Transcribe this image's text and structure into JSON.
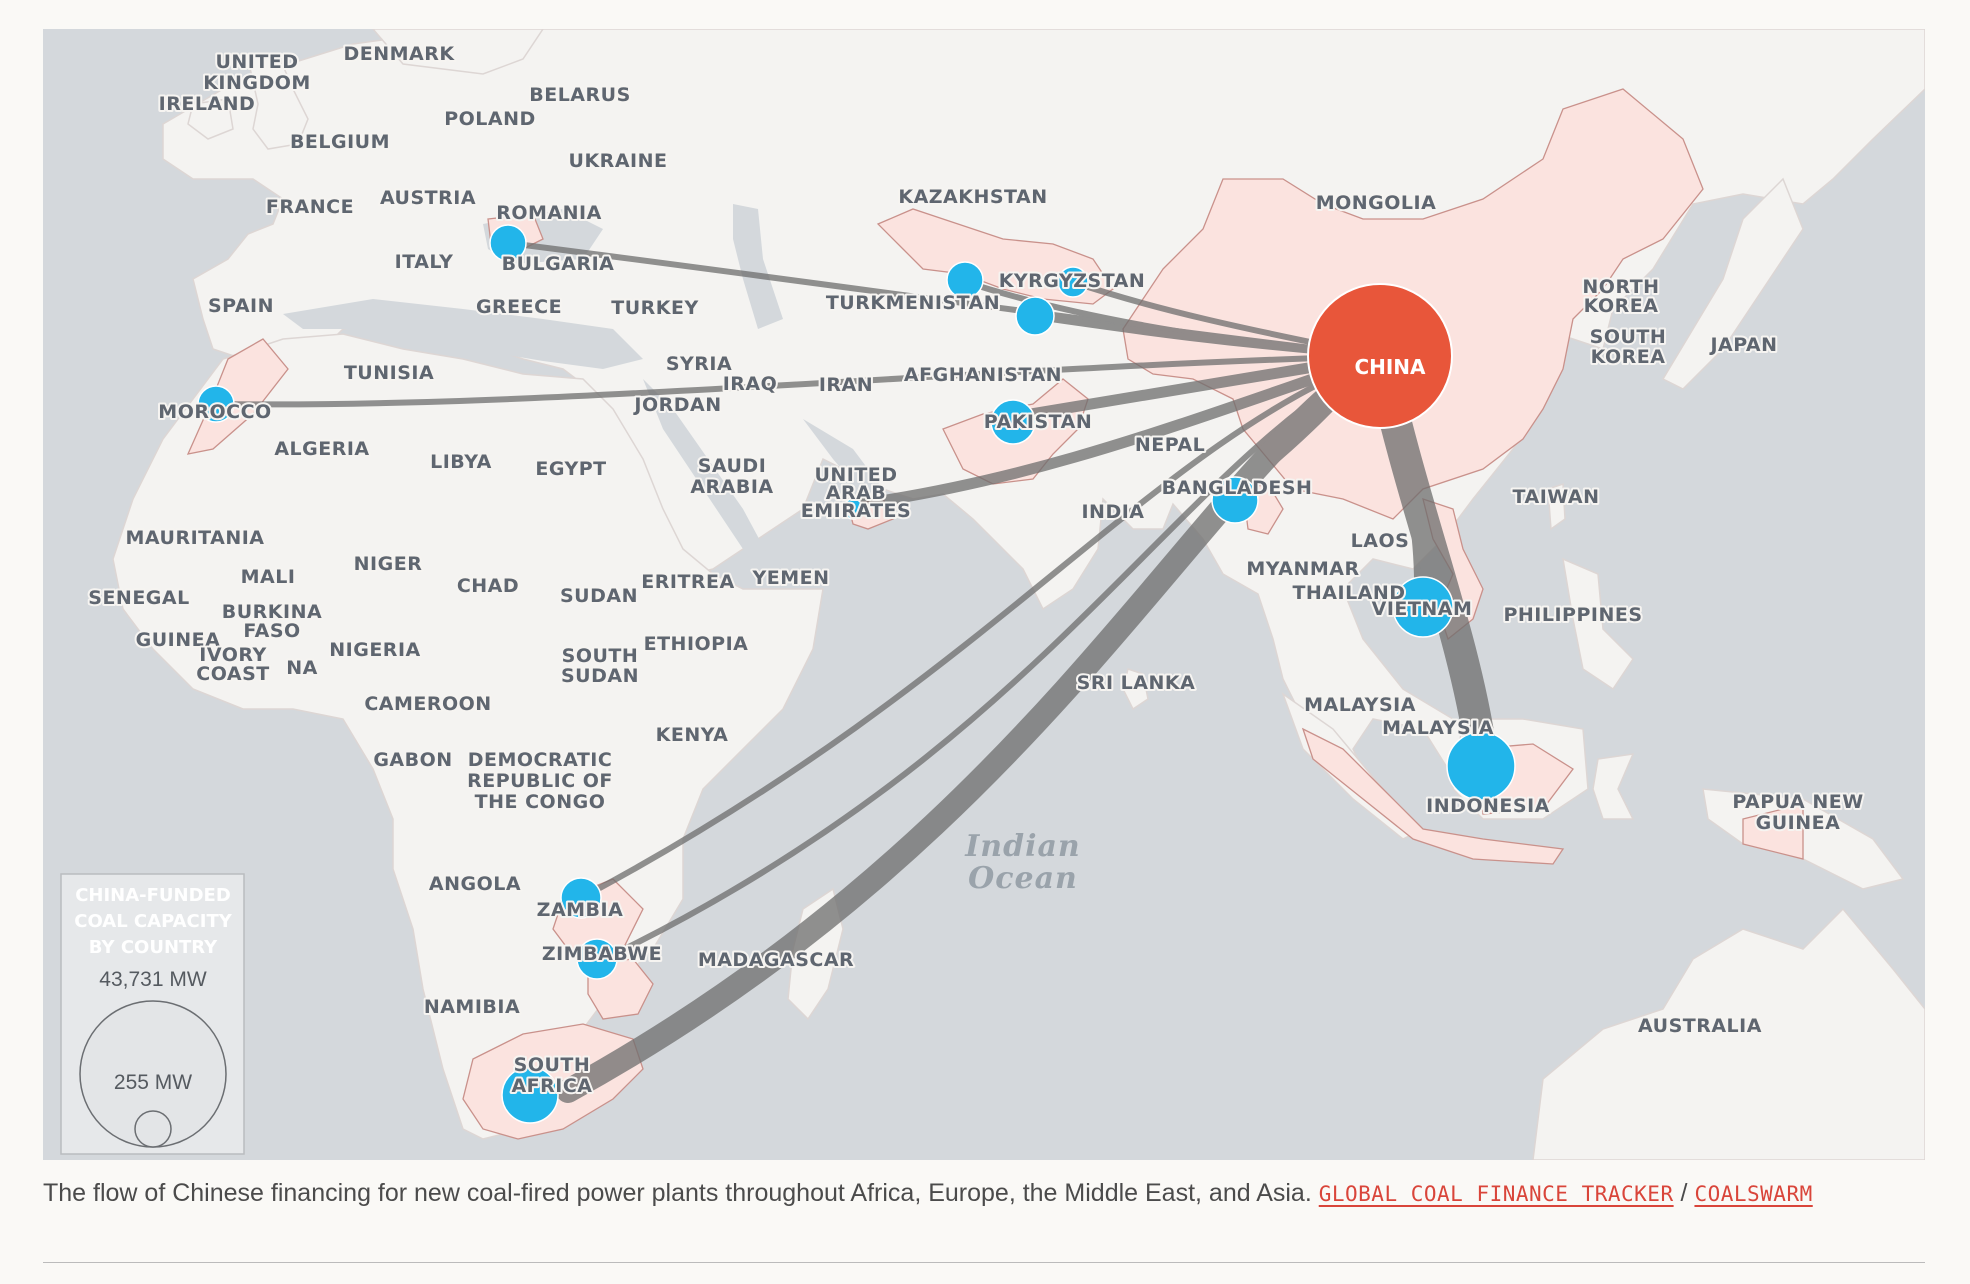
{
  "map": {
    "hub": {
      "name": "CHINA",
      "color": "#e8563a"
    },
    "flow_color": "#6e6e6e",
    "node_color": "#22b5ea",
    "ocean_label": [
      "Indian",
      "Ocean"
    ],
    "funded_countries": [
      "ROMANIA",
      "KYRGYZSTAN",
      "TURKMENISTAN",
      "MOROCCO",
      "PAKISTAN",
      "UNITED ARAB EMIRATES",
      "BANGLADESH",
      "VIETNAM",
      "INDONESIA",
      "ZAMBIA",
      "ZIMBABWE",
      "SOUTH AFRICA"
    ],
    "labels": {
      "united_kingdom": [
        "UNITED",
        "KINGDOM"
      ],
      "denmark": "DENMARK",
      "ireland": "IRELAND",
      "belarus": "BELARUS",
      "poland": "POLAND",
      "belgium": "BELGIUM",
      "ukraine": "UKRAINE",
      "france": "FRANCE",
      "austria": "AUSTRIA",
      "romania": "ROMANIA",
      "kazakhstan": "KAZAKHSTAN",
      "mongolia": "MONGOLIA",
      "italy": "ITALY",
      "bulgaria": "BULGARIA",
      "kyrgyzstan": "KYRGYZSTAN",
      "spain": "SPAIN",
      "greece": "GREECE",
      "turkey": "TURKEY",
      "turkmenistan": "TURKMENISTAN",
      "north_korea": [
        "NORTH",
        "KOREA"
      ],
      "south_korea": [
        "SOUTH",
        "KOREA"
      ],
      "japan": "JAPAN",
      "china": "CHINA",
      "tunisia": "TUNISIA",
      "syria": "SYRIA",
      "afghanistan": "AFGHANISTAN",
      "iraq": "IRAQ",
      "iran": "IRAN",
      "morocco": "MOROCCO",
      "jordan": "JORDAN",
      "pakistan": "PAKISTAN",
      "algeria": "ALGERIA",
      "nepal": "NEPAL",
      "libya": "LIBYA",
      "egypt": "EGYPT",
      "saudi_arabia": [
        "SAUDI",
        "ARABIA"
      ],
      "uae": [
        "UNITED",
        "ARAB",
        "EMIRATES"
      ],
      "bangladesh": "BANGLADESH",
      "india": "INDIA",
      "taiwan": "TAIWAN",
      "mauritania": "MAURITANIA",
      "laos": "LAOS",
      "mali": "MALI",
      "niger": "NIGER",
      "myanmar": "MYANMAR",
      "chad": "CHAD",
      "eritrea": "ERITREA",
      "yemen": "YEMEN",
      "senegal": "SENEGAL",
      "sudan": "SUDAN",
      "thailand": "THAILAND",
      "vietnam": "VIETNAM",
      "philippines": "PHILIPPINES",
      "burkina_faso": [
        "BURKINA",
        "FASO"
      ],
      "guinea": "GUINEA",
      "ethiopia": "ETHIOPIA",
      "nigeria": "NIGERIA",
      "ivory_coast": [
        "IVORY",
        "COAST"
      ],
      "ghana_fragment": "NA",
      "south_sudan": [
        "SOUTH",
        "SUDAN"
      ],
      "sri_lanka": "SRI LANKA",
      "cameroon": "CAMEROON",
      "malaysia_west": "MALAYSIA",
      "kenya": "KENYA",
      "malaysia_east": "MALAYSIA",
      "gabon": "GABON",
      "drc": [
        "DEMOCRATIC",
        "REPUBLIC OF",
        "THE CONGO"
      ],
      "indonesia": "INDONESIA",
      "papua_new_guinea": [
        "PAPUA NEW",
        "GUINEA"
      ],
      "angola": "ANGOLA",
      "zambia": "ZAMBIA",
      "zimbabwe": "ZIMBABWE",
      "madagascar": "MADAGASCAR",
      "namibia": "NAMIBIA",
      "australia": "AUSTRALIA",
      "south_africa": [
        "SOUTH",
        "AFRICA"
      ]
    }
  },
  "legend": {
    "title": [
      "CHINA-FUNDED",
      "COAL CAPACITY",
      "BY COUNTRY"
    ],
    "max_value": "43,731 MW",
    "min_value": "255 MW"
  },
  "caption": {
    "text": "The flow of Chinese financing for new coal-fired power plants throughout Africa, Europe, the Middle East, and Asia. ",
    "source_1": "GLOBAL COAL FINANCE TRACKER",
    "separator": " / ",
    "source_2": "COALSWARM"
  }
}
